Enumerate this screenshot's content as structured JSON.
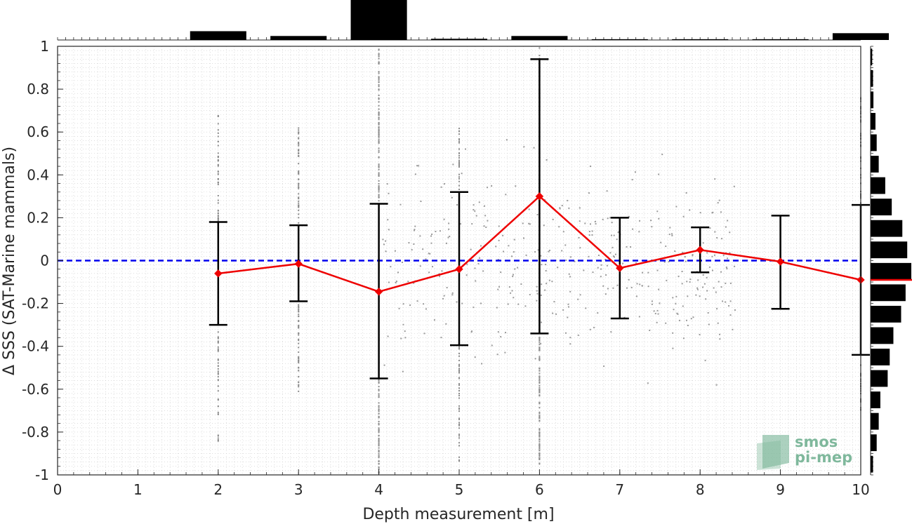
{
  "chart_data": {
    "type": "scatter",
    "xlabel": "Depth measurement [m]",
    "ylabel": "Δ SSS (SAT-Marine mammals)",
    "xlim": [
      0,
      10
    ],
    "ylim": [
      -1,
      1
    ],
    "x_ticks": [
      "0",
      "1",
      "2",
      "3",
      "4",
      "5",
      "6",
      "7",
      "8",
      "9",
      "10"
    ],
    "y_ticks": [
      "-1",
      "-0.8",
      "-0.6",
      "-0.4",
      "-0.2",
      "0",
      "0.2",
      "0.4",
      "0.6",
      "0.8",
      "1"
    ],
    "grid": true,
    "reference_line": {
      "y": 0,
      "style": "dashed",
      "color": "#0000ee"
    },
    "series": [
      {
        "type": "line-with-errorbars",
        "color": "#ee0000",
        "errorbar_color": "#000000",
        "x": [
          2,
          3,
          4,
          5,
          6,
          7,
          8,
          9,
          10
        ],
        "y": [
          -0.06,
          -0.015,
          -0.145,
          -0.04,
          0.3,
          -0.035,
          0.05,
          -0.005,
          -0.09
        ],
        "err_low": [
          -0.3,
          -0.19,
          -0.55,
          -0.395,
          -0.34,
          -0.27,
          -0.055,
          -0.225,
          -0.44
        ],
        "err_high": [
          0.18,
          0.165,
          0.265,
          0.32,
          0.94,
          0.2,
          0.155,
          0.21,
          0.26
        ]
      }
    ],
    "scatter_columns": [
      {
        "x": 2,
        "y_min": -0.85,
        "y_max": 0.68
      },
      {
        "x": 3,
        "y_min": -0.62,
        "y_max": 0.63
      },
      {
        "x": 4,
        "y_min": -1.0,
        "y_max": 1.0
      },
      {
        "x": 5,
        "y_min": -0.95,
        "y_max": 0.62
      },
      {
        "x": 6,
        "y_min": -0.95,
        "y_max": 1.0
      },
      {
        "x": 10,
        "y_min": -0.7,
        "y_max": 0.8
      }
    ],
    "top_histogram": {
      "bins": [
        0,
        1,
        2,
        3,
        4,
        5,
        6,
        7,
        8,
        9,
        10
      ],
      "relative_counts": [
        0,
        0,
        0.22,
        0.1,
        1.0,
        0.03,
        0.1,
        0.02,
        0.02,
        0.02,
        0.17
      ]
    },
    "right_histogram": {
      "bin_centers": [
        -0.95,
        -0.85,
        -0.75,
        -0.65,
        -0.55,
        -0.45,
        -0.35,
        -0.25,
        -0.15,
        -0.05,
        0.05,
        0.15,
        0.25,
        0.35,
        0.45,
        0.55,
        0.65,
        0.75,
        0.85,
        0.95
      ],
      "relative_counts": [
        0.06,
        0.15,
        0.2,
        0.24,
        0.42,
        0.47,
        0.56,
        0.75,
        0.86,
        1.0,
        0.9,
        0.78,
        0.52,
        0.36,
        0.2,
        0.15,
        0.12,
        0.07,
        0.06,
        0.04
      ],
      "mean_marker": -0.09,
      "mean_color": "#ee0000"
    }
  },
  "logo": {
    "line1": "smos",
    "line2": "pi-mep",
    "color": "#7fb89c"
  }
}
